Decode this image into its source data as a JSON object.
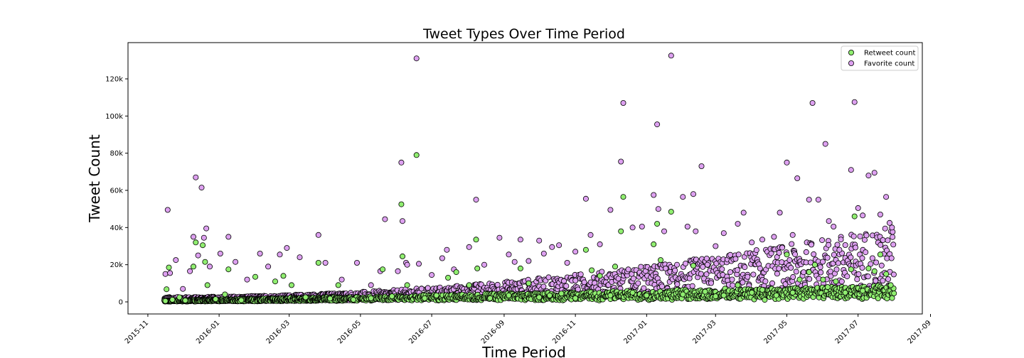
{
  "chart_data": {
    "type": "scatter",
    "title": "Tweet Types Over Time Period",
    "xlabel": "Time Period",
    "ylabel": "Tweet Count",
    "x_type": "date",
    "xlim": [
      "2015-10-15",
      "2017-08-25"
    ],
    "ylim": [
      -6500,
      139500
    ],
    "x_ticks": [
      "2015-11",
      "2016-01",
      "2016-03",
      "2016-05",
      "2016-07",
      "2016-09",
      "2016-11",
      "2017-01",
      "2017-03",
      "2017-05",
      "2017-07",
      "2017-09"
    ],
    "y_ticks": [
      0,
      20000,
      40000,
      60000,
      80000,
      100000,
      120000
    ],
    "y_tick_labels": [
      "0",
      "20k",
      "40k",
      "60k",
      "80k",
      "100k",
      "120k"
    ],
    "grid": false,
    "legend_position": "top-right",
    "series": [
      {
        "name": "Retweet count",
        "color": "#90ee70",
        "points": [
          [
            "2015-11-16",
            500
          ],
          [
            "2015-11-17",
            6800
          ],
          [
            "2015-11-19",
            18500
          ],
          [
            "2015-11-22",
            1200
          ],
          [
            "2015-11-28",
            2500
          ],
          [
            "2015-12-03",
            800
          ],
          [
            "2015-12-10",
            19000
          ],
          [
            "2015-12-12",
            32000
          ],
          [
            "2015-12-18",
            30500
          ],
          [
            "2015-12-20",
            21500
          ],
          [
            "2015-12-22",
            9000
          ],
          [
            "2015-12-29",
            1500
          ],
          [
            "2016-01-06",
            4000
          ],
          [
            "2016-01-09",
            17500
          ],
          [
            "2016-01-20",
            900
          ],
          [
            "2016-02-01",
            13500
          ],
          [
            "2016-02-18",
            11000
          ],
          [
            "2016-02-25",
            14000
          ],
          [
            "2016-03-03",
            9000
          ],
          [
            "2016-03-15",
            2500
          ],
          [
            "2016-03-26",
            21000
          ],
          [
            "2016-04-05",
            1800
          ],
          [
            "2016-04-12",
            9000
          ],
          [
            "2016-04-25",
            1200
          ],
          [
            "2016-05-10",
            2000
          ],
          [
            "2016-05-20",
            17500
          ],
          [
            "2016-05-28",
            3000
          ],
          [
            "2016-06-05",
            52500
          ],
          [
            "2016-06-06",
            24500
          ],
          [
            "2016-06-10",
            9000
          ],
          [
            "2016-06-18",
            79000
          ],
          [
            "2016-06-25",
            2000
          ],
          [
            "2016-07-05",
            3500
          ],
          [
            "2016-07-15",
            13000
          ],
          [
            "2016-07-22",
            16000
          ],
          [
            "2016-08-02",
            9000
          ],
          [
            "2016-08-08",
            33500
          ],
          [
            "2016-08-09",
            18000
          ],
          [
            "2016-08-20",
            2000
          ],
          [
            "2016-09-05",
            3500
          ],
          [
            "2016-09-15",
            18000
          ],
          [
            "2016-09-22",
            10000
          ],
          [
            "2016-10-01",
            2500
          ],
          [
            "2016-10-10",
            3500
          ],
          [
            "2016-10-20",
            4500
          ],
          [
            "2016-11-01",
            2000
          ],
          [
            "2016-11-10",
            28000
          ],
          [
            "2016-11-15",
            17000
          ],
          [
            "2016-11-22",
            14000
          ],
          [
            "2016-12-01",
            3500
          ],
          [
            "2016-12-05",
            19000
          ],
          [
            "2016-12-10",
            38000
          ],
          [
            "2016-12-12",
            56500
          ],
          [
            "2016-12-20",
            5000
          ],
          [
            "2017-01-01",
            3500
          ],
          [
            "2017-01-07",
            31000
          ],
          [
            "2017-01-10",
            42000
          ],
          [
            "2017-01-13",
            22500
          ],
          [
            "2017-01-22",
            48500
          ],
          [
            "2017-02-01",
            4000
          ],
          [
            "2017-02-10",
            19500
          ],
          [
            "2017-02-20",
            5500
          ],
          [
            "2017-03-01",
            3000
          ],
          [
            "2017-03-08",
            3500
          ],
          [
            "2017-03-20",
            9000
          ],
          [
            "2017-04-01",
            5000
          ],
          [
            "2017-04-10",
            6500
          ],
          [
            "2017-04-22",
            3500
          ],
          [
            "2017-05-01",
            25500
          ],
          [
            "2017-05-06",
            5000
          ],
          [
            "2017-05-12",
            12000
          ],
          [
            "2017-05-20",
            16000
          ],
          [
            "2017-05-25",
            20000
          ],
          [
            "2017-06-01",
            12000
          ],
          [
            "2017-06-05",
            8000
          ],
          [
            "2017-06-12",
            11000
          ],
          [
            "2017-06-20",
            5000
          ],
          [
            "2017-06-25",
            17500
          ],
          [
            "2017-06-28",
            46000
          ],
          [
            "2017-07-05",
            6000
          ],
          [
            "2017-07-10",
            18000
          ],
          [
            "2017-07-15",
            16500
          ],
          [
            "2017-07-20",
            25500
          ],
          [
            "2017-07-25",
            15000
          ],
          [
            "2017-07-29",
            9000
          ]
        ],
        "baseline_start": "2015-11-15",
        "baseline_end": "2017-07-31"
      },
      {
        "name": "Favorite count",
        "color": "#dda0f0",
        "points": [
          [
            "2015-11-16",
            15000
          ],
          [
            "2015-11-18",
            49500
          ],
          [
            "2015-11-20",
            15500
          ],
          [
            "2015-11-25",
            22500
          ],
          [
            "2015-12-01",
            7000
          ],
          [
            "2015-12-07",
            16500
          ],
          [
            "2015-12-10",
            35000
          ],
          [
            "2015-12-12",
            67000
          ],
          [
            "2015-12-14",
            25000
          ],
          [
            "2015-12-17",
            61500
          ],
          [
            "2015-12-19",
            34500
          ],
          [
            "2015-12-21",
            39500
          ],
          [
            "2015-12-24",
            19000
          ],
          [
            "2016-01-02",
            26000
          ],
          [
            "2016-01-09",
            35000
          ],
          [
            "2016-01-15",
            21500
          ],
          [
            "2016-01-25",
            12000
          ],
          [
            "2016-02-05",
            26000
          ],
          [
            "2016-02-12",
            19000
          ],
          [
            "2016-02-22",
            25500
          ],
          [
            "2016-02-28",
            29000
          ],
          [
            "2016-03-10",
            24000
          ],
          [
            "2016-03-26",
            36000
          ],
          [
            "2016-04-01",
            21000
          ],
          [
            "2016-04-15",
            12000
          ],
          [
            "2016-04-28",
            21000
          ],
          [
            "2016-05-10",
            9000
          ],
          [
            "2016-05-18",
            16500
          ],
          [
            "2016-05-22",
            44500
          ],
          [
            "2016-06-02",
            16500
          ],
          [
            "2016-06-05",
            75000
          ],
          [
            "2016-06-06",
            43500
          ],
          [
            "2016-06-09",
            21000
          ],
          [
            "2016-06-10",
            20000
          ],
          [
            "2016-06-18",
            131000
          ],
          [
            "2016-06-20",
            20500
          ],
          [
            "2016-07-01",
            14500
          ],
          [
            "2016-07-10",
            23500
          ],
          [
            "2016-07-14",
            28000
          ],
          [
            "2016-07-20",
            17500
          ],
          [
            "2016-08-02",
            29500
          ],
          [
            "2016-08-08",
            55000
          ],
          [
            "2016-08-15",
            20000
          ],
          [
            "2016-08-28",
            34500
          ],
          [
            "2016-09-05",
            25500
          ],
          [
            "2016-09-10",
            21500
          ],
          [
            "2016-09-15",
            33500
          ],
          [
            "2016-09-22",
            22000
          ],
          [
            "2016-10-01",
            33000
          ],
          [
            "2016-10-05",
            26000
          ],
          [
            "2016-10-12",
            29500
          ],
          [
            "2016-10-18",
            30500
          ],
          [
            "2016-10-25",
            21000
          ],
          [
            "2016-11-01",
            27000
          ],
          [
            "2016-11-10",
            55500
          ],
          [
            "2016-11-14",
            36000
          ],
          [
            "2016-11-22",
            31000
          ],
          [
            "2016-12-01",
            49500
          ],
          [
            "2016-12-10",
            75500
          ],
          [
            "2016-12-12",
            107000
          ],
          [
            "2016-12-20",
            40000
          ],
          [
            "2016-12-28",
            40500
          ],
          [
            "2017-01-07",
            57500
          ],
          [
            "2017-01-10",
            95500
          ],
          [
            "2017-01-11",
            50000
          ],
          [
            "2017-01-16",
            38000
          ],
          [
            "2017-01-22",
            132500
          ],
          [
            "2017-01-27",
            20000
          ],
          [
            "2017-02-01",
            56500
          ],
          [
            "2017-02-05",
            40500
          ],
          [
            "2017-02-10",
            58000
          ],
          [
            "2017-02-12",
            38000
          ],
          [
            "2017-02-17",
            73000
          ],
          [
            "2017-02-22",
            20000
          ],
          [
            "2017-03-01",
            30000
          ],
          [
            "2017-03-08",
            37000
          ],
          [
            "2017-03-20",
            42000
          ],
          [
            "2017-03-25",
            48000
          ],
          [
            "2017-04-01",
            32000
          ],
          [
            "2017-04-10",
            33500
          ],
          [
            "2017-04-20",
            35000
          ],
          [
            "2017-04-25",
            48000
          ],
          [
            "2017-05-01",
            75000
          ],
          [
            "2017-05-06",
            36000
          ],
          [
            "2017-05-10",
            66500
          ],
          [
            "2017-05-20",
            55000
          ],
          [
            "2017-05-23",
            107000
          ],
          [
            "2017-05-28",
            55000
          ],
          [
            "2017-06-03",
            85000
          ],
          [
            "2017-06-06",
            43500
          ],
          [
            "2017-06-10",
            40500
          ],
          [
            "2017-06-15",
            28000
          ],
          [
            "2017-06-25",
            71000
          ],
          [
            "2017-06-28",
            107500
          ],
          [
            "2017-07-01",
            50500
          ],
          [
            "2017-07-05",
            46500
          ],
          [
            "2017-07-10",
            68000
          ],
          [
            "2017-07-15",
            69500
          ],
          [
            "2017-07-20",
            47000
          ],
          [
            "2017-07-25",
            56500
          ],
          [
            "2017-07-28",
            42500
          ],
          [
            "2017-07-30",
            40000
          ]
        ],
        "baseline_start": "2015-11-15",
        "baseline_end": "2017-07-31"
      }
    ]
  }
}
